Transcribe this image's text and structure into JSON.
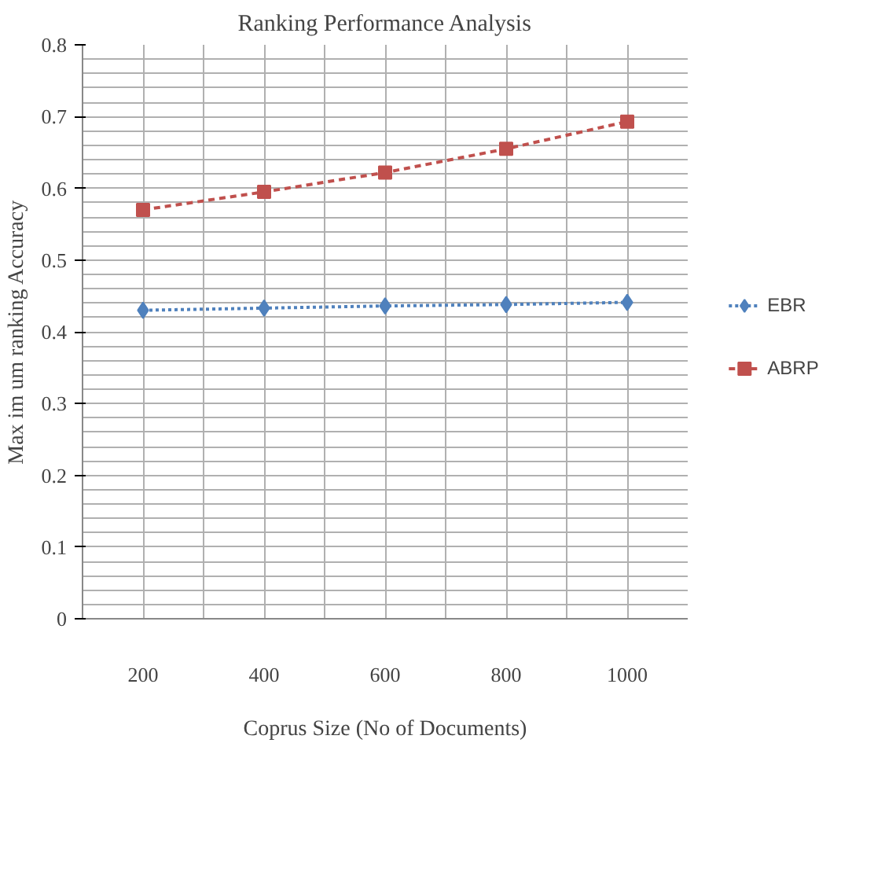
{
  "chart_data": {
    "type": "line",
    "title": "Ranking Performance Analysis",
    "xlabel": "Coprus Size (No of Documents)",
    "ylabel": "Max im um ranking Accuracy",
    "categories": [
      "200",
      "400",
      "600",
      "800",
      "1000"
    ],
    "series": [
      {
        "name": "EBR",
        "color": "#4f81bd",
        "marker": "diamond",
        "line_style": "dotted",
        "values": [
          0.43,
          0.433,
          0.436,
          0.438,
          0.441
        ]
      },
      {
        "name": "ABRP",
        "color": "#c0504d",
        "marker": "square",
        "line_style": "dashed",
        "values": [
          0.57,
          0.595,
          0.622,
          0.655,
          0.693
        ]
      }
    ],
    "ylim": [
      0,
      0.8
    ],
    "yticks": [
      0,
      0.1,
      0.2,
      0.3,
      0.4,
      0.5,
      0.6,
      0.7,
      0.8
    ],
    "grid": true,
    "legend": "right"
  }
}
